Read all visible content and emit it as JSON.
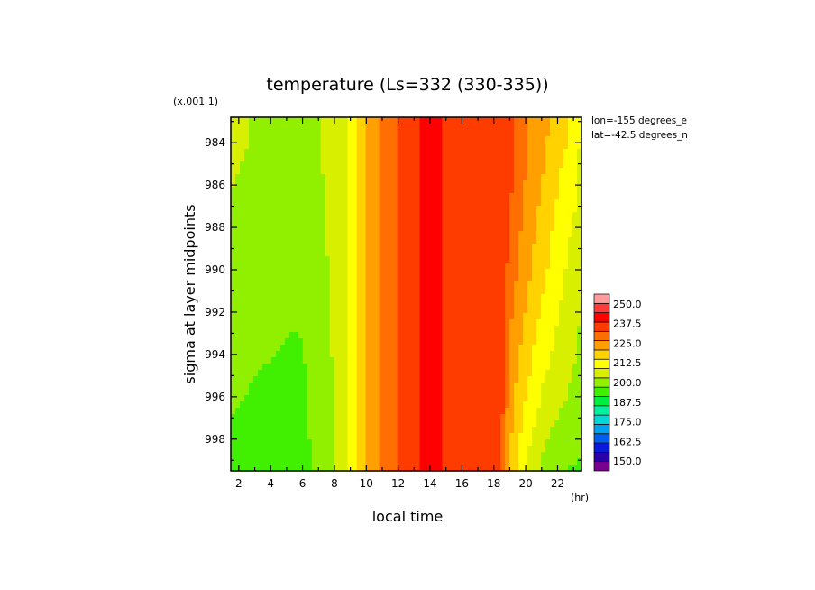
{
  "chart_data": {
    "type": "heatmap",
    "title": "temperature (Ls=332 (330-335))",
    "xlabel": "local time",
    "ylabel": "sigma at layer midpoints",
    "x_unit": "(hr)",
    "y_scale_note": "(x.001 1)",
    "xlim": [
      1.5,
      23.5
    ],
    "ylim": [
      999.5,
      982.8
    ],
    "x_ticks": [
      "2",
      "4",
      "6",
      "8",
      "10",
      "12",
      "14",
      "16",
      "18",
      "20",
      "22"
    ],
    "y_ticks": [
      "984",
      "986",
      "988",
      "990",
      "992",
      "994",
      "996",
      "998"
    ],
    "annotations": [
      "lon=-155 degrees_e",
      "lat=-42.5 degrees_n"
    ],
    "colorbar": {
      "min": 143.75,
      "max": 256.25,
      "step": 6.25,
      "labels": [
        "250.0",
        "237.5",
        "225.0",
        "212.5",
        "200.0",
        "187.5",
        "175.0",
        "162.5",
        "150.0"
      ],
      "label_values": [
        250,
        237.5,
        225,
        212.5,
        200,
        187.5,
        175,
        162.5,
        150
      ],
      "colors": [
        "#7a0090",
        "#2a00a8",
        "#0a1ad8",
        "#0060ee",
        "#00a0f0",
        "#00d8d8",
        "#00f0a0",
        "#00ee40",
        "#40f000",
        "#90f000",
        "#d8f000",
        "#ffff00",
        "#ffd200",
        "#ffa000",
        "#ff6e00",
        "#ff3c00",
        "#ff0000",
        "#ff3a3a",
        "#ff9b9b"
      ]
    },
    "x": [
      1.5,
      2,
      3,
      4,
      5,
      5.5,
      6,
      7,
      8,
      8.5,
      9,
      10,
      11,
      12,
      12.5,
      13,
      14,
      15,
      16,
      17,
      18,
      18.5,
      19,
      20,
      21,
      22,
      23,
      23.5
    ],
    "y": [
      982.8,
      984,
      986,
      988,
      990,
      992,
      994,
      996,
      998,
      999.5
    ],
    "values": [
      [
        208,
        207,
        206,
        206.2,
        205.8,
        205.4,
        205.1,
        206,
        207.8,
        211,
        213.5,
        225,
        232,
        238,
        241,
        243,
        245,
        243,
        243,
        243,
        243,
        243.5,
        240,
        232,
        228,
        222,
        218,
        212
      ],
      [
        208,
        207,
        206,
        206,
        205.6,
        205.2,
        205,
        206,
        207.8,
        211,
        213.5,
        225,
        232,
        238,
        241,
        243,
        245,
        243,
        243,
        243,
        243,
        243.5,
        240,
        232,
        227,
        221,
        217,
        211
      ],
      [
        206.5,
        205.8,
        204.6,
        204.6,
        204.5,
        204.2,
        204,
        205.6,
        207.5,
        211,
        213.5,
        225,
        232,
        238,
        241,
        243,
        245,
        243,
        243,
        243,
        243,
        243.5,
        239,
        231,
        225,
        219,
        215,
        209
      ],
      [
        205.5,
        204.5,
        203.5,
        203.4,
        203.6,
        203.7,
        202.5,
        205.2,
        207.5,
        211,
        213.5,
        225,
        232,
        238,
        241,
        243,
        245,
        243,
        243,
        243,
        243,
        243,
        237,
        229,
        223,
        217,
        212,
        208
      ],
      [
        204,
        203.5,
        202.5,
        202.3,
        202.2,
        202.1,
        202,
        204.8,
        207.2,
        211,
        213.5,
        225,
        232,
        238,
        241,
        243,
        245,
        243,
        243,
        243,
        243,
        242.5,
        235,
        227,
        221,
        215,
        210,
        207
      ],
      [
        202.5,
        202,
        201.5,
        201.3,
        200.8,
        200.5,
        201,
        204.4,
        207,
        211,
        213.5,
        225,
        232,
        238,
        241,
        243,
        245,
        243,
        243,
        243,
        243,
        242,
        233,
        225,
        218,
        213,
        209,
        206
      ],
      [
        201.5,
        201.2,
        200.5,
        200.2,
        199.5,
        199.2,
        199.5,
        203.5,
        206.8,
        211,
        213.5,
        225,
        232,
        238,
        241,
        243,
        245,
        243,
        243,
        243,
        243,
        241,
        230,
        222,
        215,
        211,
        207,
        204
      ],
      [
        200.5,
        200.2,
        199.6,
        198.8,
        198.3,
        197.8,
        199,
        203,
        206.5,
        211,
        213.5,
        225,
        232,
        238,
        241,
        243,
        245,
        243,
        243,
        243,
        243,
        240,
        228,
        219,
        212,
        208,
        205,
        202
      ],
      [
        199.5,
        199,
        198.5,
        197.5,
        196.8,
        196.6,
        198,
        202.5,
        206.2,
        211,
        213.5,
        225,
        232,
        238,
        241,
        243,
        245,
        243,
        243,
        243,
        242.8,
        238,
        226,
        215,
        208,
        204,
        202,
        200.5
      ],
      [
        197.5,
        196.5,
        195.5,
        194.8,
        194.5,
        195,
        197.2,
        202,
        206,
        211,
        213.5,
        225,
        232,
        238,
        241,
        243,
        245,
        243,
        243,
        243,
        242.5,
        236,
        224,
        212,
        205,
        200.5,
        199.5,
        199
      ]
    ]
  }
}
